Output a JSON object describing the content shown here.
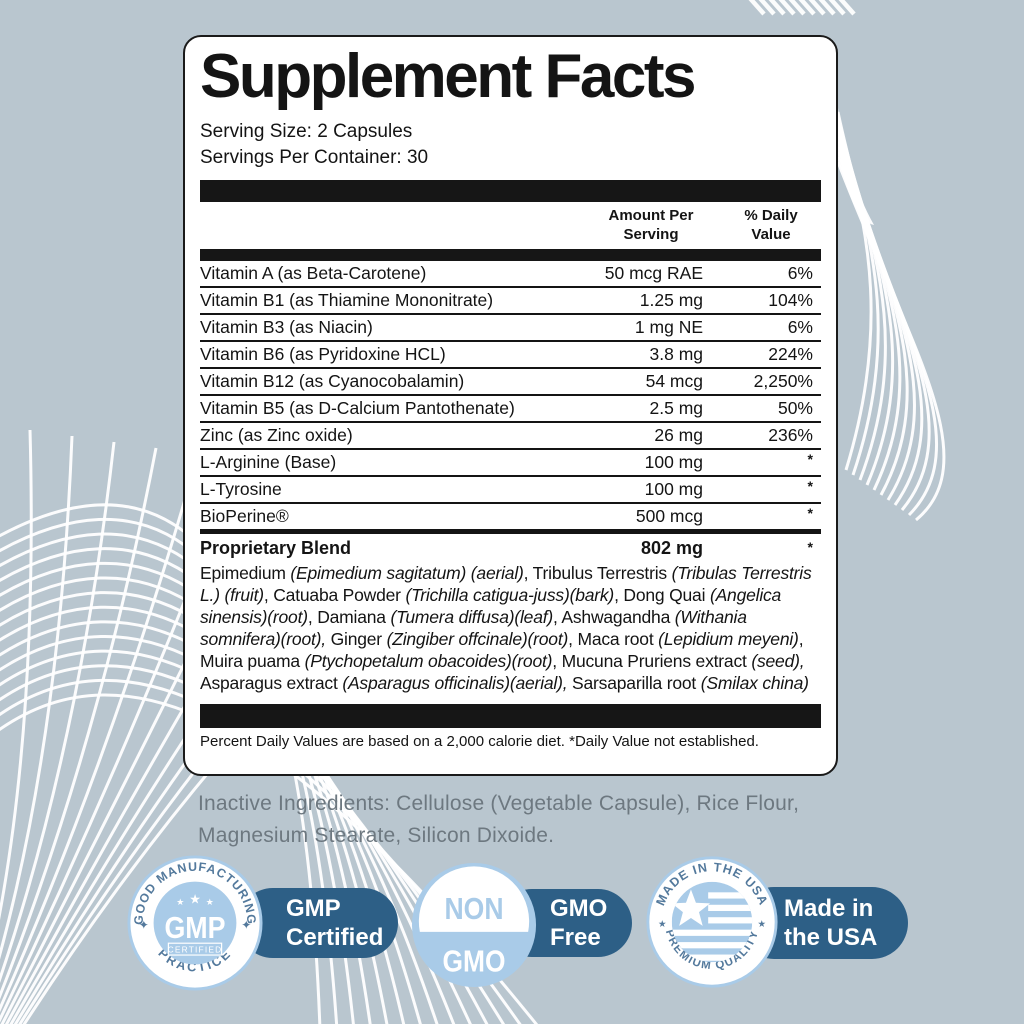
{
  "colors": {
    "background": "#b9c6cf",
    "panel_bg": "#ffffff",
    "bar_black": "#161616",
    "pill_blue": "#2d5f86",
    "seal_light_blue": "#a9cbe8",
    "seal_text_blue": "#53799c",
    "inactive_text_gray": "#6d7880"
  },
  "panel": {
    "title": "Supplement Facts",
    "serving_size": "Serving Size: 2 Capsules",
    "servings_per_container": "Servings Per Container: 30",
    "header": {
      "amount_line1": "Amount Per",
      "amount_line2": "Serving",
      "dv_line1": "% Daily",
      "dv_line2": "Value"
    },
    "rows": [
      {
        "name": "Vitamin A (as Beta-Carotene)",
        "amount": "50 mcg RAE",
        "dv": "6%"
      },
      {
        "name": "Vitamin B1 (as Thiamine Mononitrate)",
        "amount": "1.25 mg",
        "dv": "104%"
      },
      {
        "name": "Vitamin B3 (as Niacin)",
        "amount": "1 mg NE",
        "dv": "6%"
      },
      {
        "name": "Vitamin B6 (as Pyridoxine HCL)",
        "amount": "3.8 mg",
        "dv": "224%"
      },
      {
        "name": "Vitamin B12 (as Cyanocobalamin)",
        "amount": "54 mcg",
        "dv": "2,250%"
      },
      {
        "name": "Vitamin B5 (as D-Calcium Pantothenate)",
        "amount": "2.5 mg",
        "dv": "50%"
      },
      {
        "name": "Zinc (as Zinc oxide)",
        "amount": "26 mg",
        "dv": "236%"
      },
      {
        "name": "L-Arginine (Base)",
        "amount": "100 mg",
        "dv": "*"
      },
      {
        "name": "L-Tyrosine",
        "amount": "100 mg",
        "dv": "*"
      },
      {
        "name": "BioPerine®",
        "amount": "500 mcg",
        "dv": "*"
      }
    ],
    "blend_row": {
      "name": "Proprietary Blend",
      "amount": "802 mg",
      "dv": "*"
    },
    "blend_segments": [
      {
        "t": "Epimedium ",
        "i": false
      },
      {
        "t": "(Epimedium sagitatum) (aerial)",
        "i": true
      },
      {
        "t": ", Tribulus Terrestris ",
        "i": false
      },
      {
        "t": "(Tribulas Terrestris L.) (fruit)",
        "i": true
      },
      {
        "t": ", Catuaba Powder ",
        "i": false
      },
      {
        "t": "(Trichilla catigua-juss)(bark)",
        "i": true
      },
      {
        "t": ", Dong Quai ",
        "i": false
      },
      {
        "t": "(Angelica sinensis)(root)",
        "i": true
      },
      {
        "t": ", Damiana ",
        "i": false
      },
      {
        "t": "(Tumera diffusa)(leaf)",
        "i": true
      },
      {
        "t": ", Ashwagandha ",
        "i": false
      },
      {
        "t": "(Withania somnifera)(root),",
        "i": true
      },
      {
        "t": " Ginger ",
        "i": false
      },
      {
        "t": "(Zingiber offcinale)(root)",
        "i": true
      },
      {
        "t": ", Maca root ",
        "i": false
      },
      {
        "t": "(Lepidium meyeni)",
        "i": true
      },
      {
        "t": ", Muira puama ",
        "i": false
      },
      {
        "t": "(Ptychopetalum obacoides)(root)",
        "i": true
      },
      {
        "t": ", Mucuna Pruriens extract ",
        "i": false
      },
      {
        "t": "(seed),",
        "i": true
      },
      {
        "t": " Asparagus extract ",
        "i": false
      },
      {
        "t": "(Asparagus officinalis)(aerial),",
        "i": true
      },
      {
        "t": " Sarsaparilla root ",
        "i": false
      },
      {
        "t": "(Smilax china)",
        "i": true
      }
    ],
    "footnote": "Percent Daily Values are based on a 2,000 calorie diet. *Daily Value not established."
  },
  "inactive_ingredients": "Inactive Ingredients: Cellulose (Vegetable Capsule), Rice Flour, Magnesium Stearate, Silicon Dixoide.",
  "badges": {
    "gmp": {
      "arc_top": "GOOD MANUFACTURING",
      "arc_bottom": "PRACTICE",
      "center": "GMP",
      "sub": "CERTIFIED",
      "pill_line1": "GMP",
      "pill_line2": "Certified"
    },
    "non_gmo": {
      "top": "NON",
      "bottom": "GMO",
      "pill_line1": "GMO",
      "pill_line2": "Free"
    },
    "usa": {
      "arc_top": "MADE IN THE USA",
      "arc_bottom": "PREMIUM QUALITY",
      "pill_line1": "Made in",
      "pill_line2": "the USA"
    }
  }
}
